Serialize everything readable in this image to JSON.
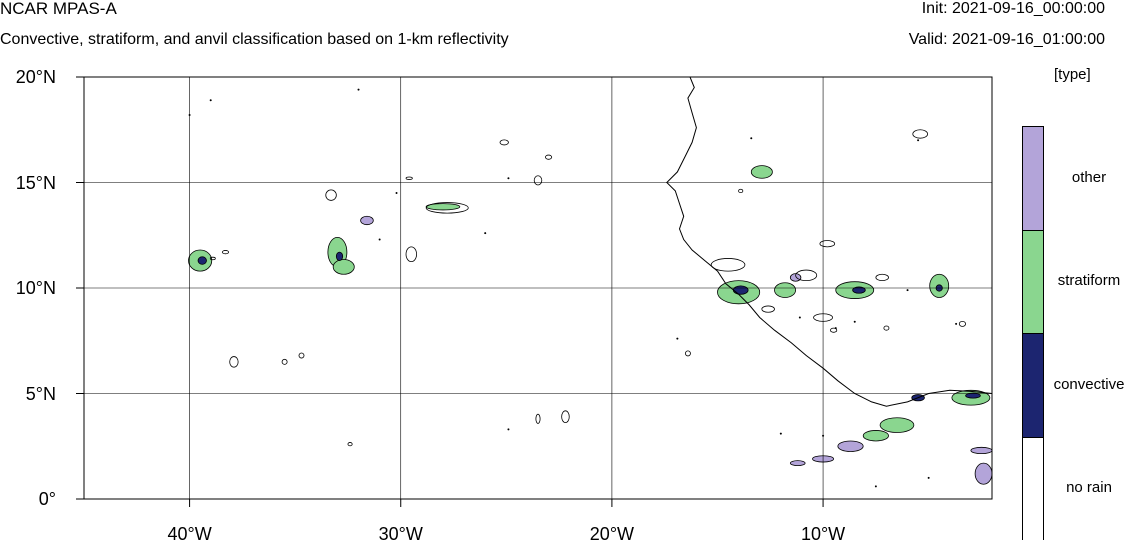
{
  "header": {
    "title": "NCAR MPAS-A",
    "subtitle": "Convective, stratiform, and anvil classification based on 1-km reflectivity",
    "init": "Init: 2021-09-16_00:00:00",
    "valid": "Valid: 2021-09-16_01:00:00"
  },
  "map": {
    "lon_range": [
      -45,
      -2
    ],
    "lat_range": [
      0,
      20
    ],
    "lat_ticks": [
      {
        "value": 20,
        "label": "20°N"
      },
      {
        "value": 15,
        "label": "15°N"
      },
      {
        "value": 10,
        "label": "10°N"
      },
      {
        "value": 5,
        "label": "5°N"
      },
      {
        "value": 0,
        "label": "0°"
      }
    ],
    "lon_ticks": [
      {
        "value": -40,
        "label": "40°W"
      },
      {
        "value": -30,
        "label": "30°W"
      },
      {
        "value": -20,
        "label": "20°W"
      },
      {
        "value": -10,
        "label": "10°W"
      }
    ],
    "gridlines": true,
    "coastline": [
      [
        -16.3,
        20
      ],
      [
        -16.1,
        19.5
      ],
      [
        -16.4,
        19.0
      ],
      [
        -16.2,
        18.3
      ],
      [
        -16.0,
        17.6
      ],
      [
        -16.2,
        16.9
      ],
      [
        -16.5,
        16.3
      ],
      [
        -16.9,
        15.5
      ],
      [
        -17.4,
        15.0
      ],
      [
        -17.0,
        14.6
      ],
      [
        -16.8,
        14.0
      ],
      [
        -16.6,
        13.4
      ],
      [
        -16.8,
        12.8
      ],
      [
        -16.6,
        12.3
      ],
      [
        -16.2,
        11.8
      ],
      [
        -15.6,
        11.3
      ],
      [
        -15.0,
        10.8
      ],
      [
        -14.6,
        10.2
      ],
      [
        -14.0,
        9.7
      ],
      [
        -13.5,
        9.2
      ],
      [
        -13.0,
        8.6
      ],
      [
        -12.3,
        8.0
      ],
      [
        -11.5,
        7.4
      ],
      [
        -10.8,
        6.8
      ],
      [
        -10.0,
        6.2
      ],
      [
        -9.3,
        5.6
      ],
      [
        -8.5,
        5.0
      ],
      [
        -7.7,
        4.6
      ],
      [
        -7.0,
        4.4
      ],
      [
        -6.0,
        4.6
      ],
      [
        -5.0,
        5.0
      ],
      [
        -4.0,
        5.15
      ],
      [
        -3.0,
        5.1
      ],
      [
        -2.0,
        5.0
      ]
    ],
    "colors": {
      "other": "#b3a4d9",
      "stratiform": "#8ad68f",
      "convective": "#1c2570",
      "no_rain": "#ffffff"
    },
    "cells": [
      {
        "lon": -39.5,
        "lat": 11.3,
        "rx": 0.55,
        "ry": 0.5,
        "type": "stratiform"
      },
      {
        "lon": -39.4,
        "lat": 11.3,
        "rx": 0.2,
        "ry": 0.18,
        "type": "convective"
      },
      {
        "lon": -33.0,
        "lat": 11.7,
        "rx": 0.45,
        "ry": 0.7,
        "type": "stratiform"
      },
      {
        "lon": -32.7,
        "lat": 11.0,
        "rx": 0.5,
        "ry": 0.35,
        "type": "stratiform"
      },
      {
        "lon": -32.9,
        "lat": 11.5,
        "rx": 0.15,
        "ry": 0.2,
        "type": "convective"
      },
      {
        "lon": -31.6,
        "lat": 13.2,
        "rx": 0.3,
        "ry": 0.2,
        "type": "other"
      },
      {
        "lon": -28.0,
        "lat": 13.85,
        "rx": 0.8,
        "ry": 0.15,
        "type": "stratiform"
      },
      {
        "lon": -12.9,
        "lat": 15.5,
        "rx": 0.5,
        "ry": 0.3,
        "type": "stratiform"
      },
      {
        "lon": -14.0,
        "lat": 9.8,
        "rx": 1.0,
        "ry": 0.55,
        "type": "stratiform"
      },
      {
        "lon": -13.9,
        "lat": 9.9,
        "rx": 0.35,
        "ry": 0.2,
        "type": "convective"
      },
      {
        "lon": -11.8,
        "lat": 9.9,
        "rx": 0.5,
        "ry": 0.35,
        "type": "stratiform"
      },
      {
        "lon": -11.3,
        "lat": 10.5,
        "rx": 0.25,
        "ry": 0.18,
        "type": "other"
      },
      {
        "lon": -8.5,
        "lat": 9.9,
        "rx": 0.9,
        "ry": 0.4,
        "type": "stratiform"
      },
      {
        "lon": -8.3,
        "lat": 9.9,
        "rx": 0.3,
        "ry": 0.15,
        "type": "convective"
      },
      {
        "lon": -4.5,
        "lat": 10.1,
        "rx": 0.45,
        "ry": 0.55,
        "type": "stratiform"
      },
      {
        "lon": -4.5,
        "lat": 10.0,
        "rx": 0.15,
        "ry": 0.15,
        "type": "convective"
      },
      {
        "lon": -6.5,
        "lat": 3.5,
        "rx": 0.8,
        "ry": 0.35,
        "type": "stratiform"
      },
      {
        "lon": -7.5,
        "lat": 3.0,
        "rx": 0.6,
        "ry": 0.25,
        "type": "stratiform"
      },
      {
        "lon": -8.7,
        "lat": 2.5,
        "rx": 0.6,
        "ry": 0.25,
        "type": "other"
      },
      {
        "lon": -5.5,
        "lat": 4.8,
        "rx": 0.3,
        "ry": 0.15,
        "type": "convective"
      },
      {
        "lon": -3.0,
        "lat": 4.8,
        "rx": 0.9,
        "ry": 0.35,
        "type": "stratiform"
      },
      {
        "lon": -2.9,
        "lat": 4.9,
        "rx": 0.35,
        "ry": 0.12,
        "type": "convective"
      },
      {
        "lon": -2.5,
        "lat": 2.3,
        "rx": 0.5,
        "ry": 0.15,
        "type": "other"
      },
      {
        "lon": -2.4,
        "lat": 1.2,
        "rx": 0.4,
        "ry": 0.5,
        "type": "other"
      },
      {
        "lon": -10.0,
        "lat": 1.9,
        "rx": 0.5,
        "ry": 0.15,
        "type": "other"
      },
      {
        "lon": -11.2,
        "lat": 1.7,
        "rx": 0.35,
        "ry": 0.12,
        "type": "other"
      }
    ],
    "outlines": [
      {
        "lon": -38.3,
        "lat": 11.7,
        "rx": 0.15,
        "ry": 0.08
      },
      {
        "lon": -38.9,
        "lat": 11.4,
        "rx": 0.12,
        "ry": 0.06
      },
      {
        "lon": -33.3,
        "lat": 14.4,
        "rx": 0.25,
        "ry": 0.25
      },
      {
        "lon": -29.5,
        "lat": 11.6,
        "rx": 0.25,
        "ry": 0.35
      },
      {
        "lon": -29.6,
        "lat": 15.2,
        "rx": 0.15,
        "ry": 0.06
      },
      {
        "lon": -25.1,
        "lat": 16.9,
        "rx": 0.2,
        "ry": 0.12
      },
      {
        "lon": -23.0,
        "lat": 16.2,
        "rx": 0.15,
        "ry": 0.1
      },
      {
        "lon": -23.5,
        "lat": 15.1,
        "rx": 0.18,
        "ry": 0.22
      },
      {
        "lon": -27.8,
        "lat": 13.8,
        "rx": 1.0,
        "ry": 0.25
      },
      {
        "lon": -37.9,
        "lat": 6.5,
        "rx": 0.2,
        "ry": 0.25
      },
      {
        "lon": -35.5,
        "lat": 6.5,
        "rx": 0.12,
        "ry": 0.12
      },
      {
        "lon": -34.7,
        "lat": 6.8,
        "rx": 0.12,
        "ry": 0.12
      },
      {
        "lon": -23.5,
        "lat": 3.8,
        "rx": 0.1,
        "ry": 0.22
      },
      {
        "lon": -22.2,
        "lat": 3.9,
        "rx": 0.18,
        "ry": 0.28
      },
      {
        "lon": -32.4,
        "lat": 2.6,
        "rx": 0.1,
        "ry": 0.08
      },
      {
        "lon": -16.4,
        "lat": 6.9,
        "rx": 0.12,
        "ry": 0.12
      },
      {
        "lon": -9.8,
        "lat": 12.1,
        "rx": 0.35,
        "ry": 0.15
      },
      {
        "lon": -5.4,
        "lat": 17.3,
        "rx": 0.35,
        "ry": 0.2
      },
      {
        "lon": -12.6,
        "lat": 9.0,
        "rx": 0.3,
        "ry": 0.15
      },
      {
        "lon": -10.0,
        "lat": 8.6,
        "rx": 0.45,
        "ry": 0.18
      },
      {
        "lon": -3.4,
        "lat": 8.3,
        "rx": 0.15,
        "ry": 0.12
      },
      {
        "lon": -9.5,
        "lat": 8.0,
        "rx": 0.15,
        "ry": 0.1
      },
      {
        "lon": -7.0,
        "lat": 8.1,
        "rx": 0.12,
        "ry": 0.1
      },
      {
        "lon": -14.5,
        "lat": 11.1,
        "rx": 0.8,
        "ry": 0.3
      },
      {
        "lon": -10.8,
        "lat": 10.6,
        "rx": 0.5,
        "ry": 0.25
      },
      {
        "lon": -7.2,
        "lat": 10.5,
        "rx": 0.3,
        "ry": 0.15
      },
      {
        "lon": -13.9,
        "lat": 14.6,
        "rx": 0.1,
        "ry": 0.08
      }
    ],
    "dots": [
      [
        -40.0,
        18.2
      ],
      [
        -39.0,
        18.9
      ],
      [
        -32.0,
        19.4
      ],
      [
        -24.9,
        15.2
      ],
      [
        -30.2,
        14.5
      ],
      [
        -26.0,
        12.6
      ],
      [
        -31.0,
        12.3
      ],
      [
        -16.9,
        7.6
      ],
      [
        -24.9,
        3.3
      ],
      [
        -13.4,
        17.1
      ],
      [
        -5.5,
        17.0
      ],
      [
        -3.7,
        8.3
      ],
      [
        -11.1,
        8.6
      ],
      [
        -9.4,
        8.1
      ],
      [
        -8.5,
        8.4
      ],
      [
        -6.0,
        9.9
      ],
      [
        -12.0,
        3.1
      ],
      [
        -10.0,
        3.0
      ],
      [
        -5.0,
        1.0
      ],
      [
        -7.5,
        0.6
      ]
    ]
  },
  "legend": {
    "unit": "[type]",
    "categories": [
      {
        "key": "other",
        "label": "other"
      },
      {
        "key": "stratiform",
        "label": "stratiform"
      },
      {
        "key": "convective",
        "label": "convective"
      },
      {
        "key": "no_rain",
        "label": "no rain"
      }
    ]
  }
}
